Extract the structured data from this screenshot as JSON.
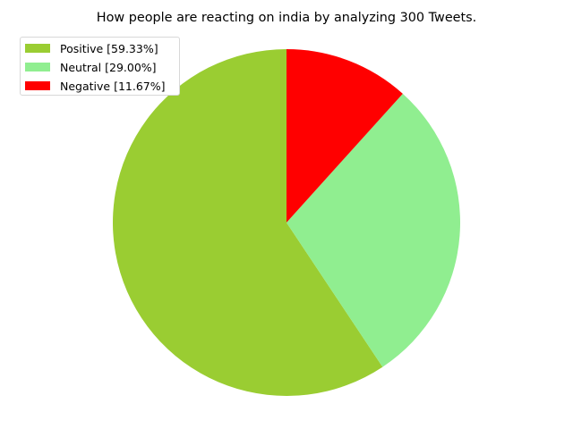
{
  "chart_data": {
    "type": "pie",
    "title": "How people are reacting on india by analyzing 300 Tweets.",
    "labels": [
      "Positive [59.33%]",
      "Neutral [29.00%]",
      "Negative [11.67%]"
    ],
    "values": [
      59.33,
      29.0,
      11.67
    ],
    "colors": [
      "#9acd32",
      "#90ee90",
      "#ff0000"
    ],
    "start_angle_deg": 90,
    "direction": "counterclockwise",
    "legend_position": "upper-left"
  }
}
